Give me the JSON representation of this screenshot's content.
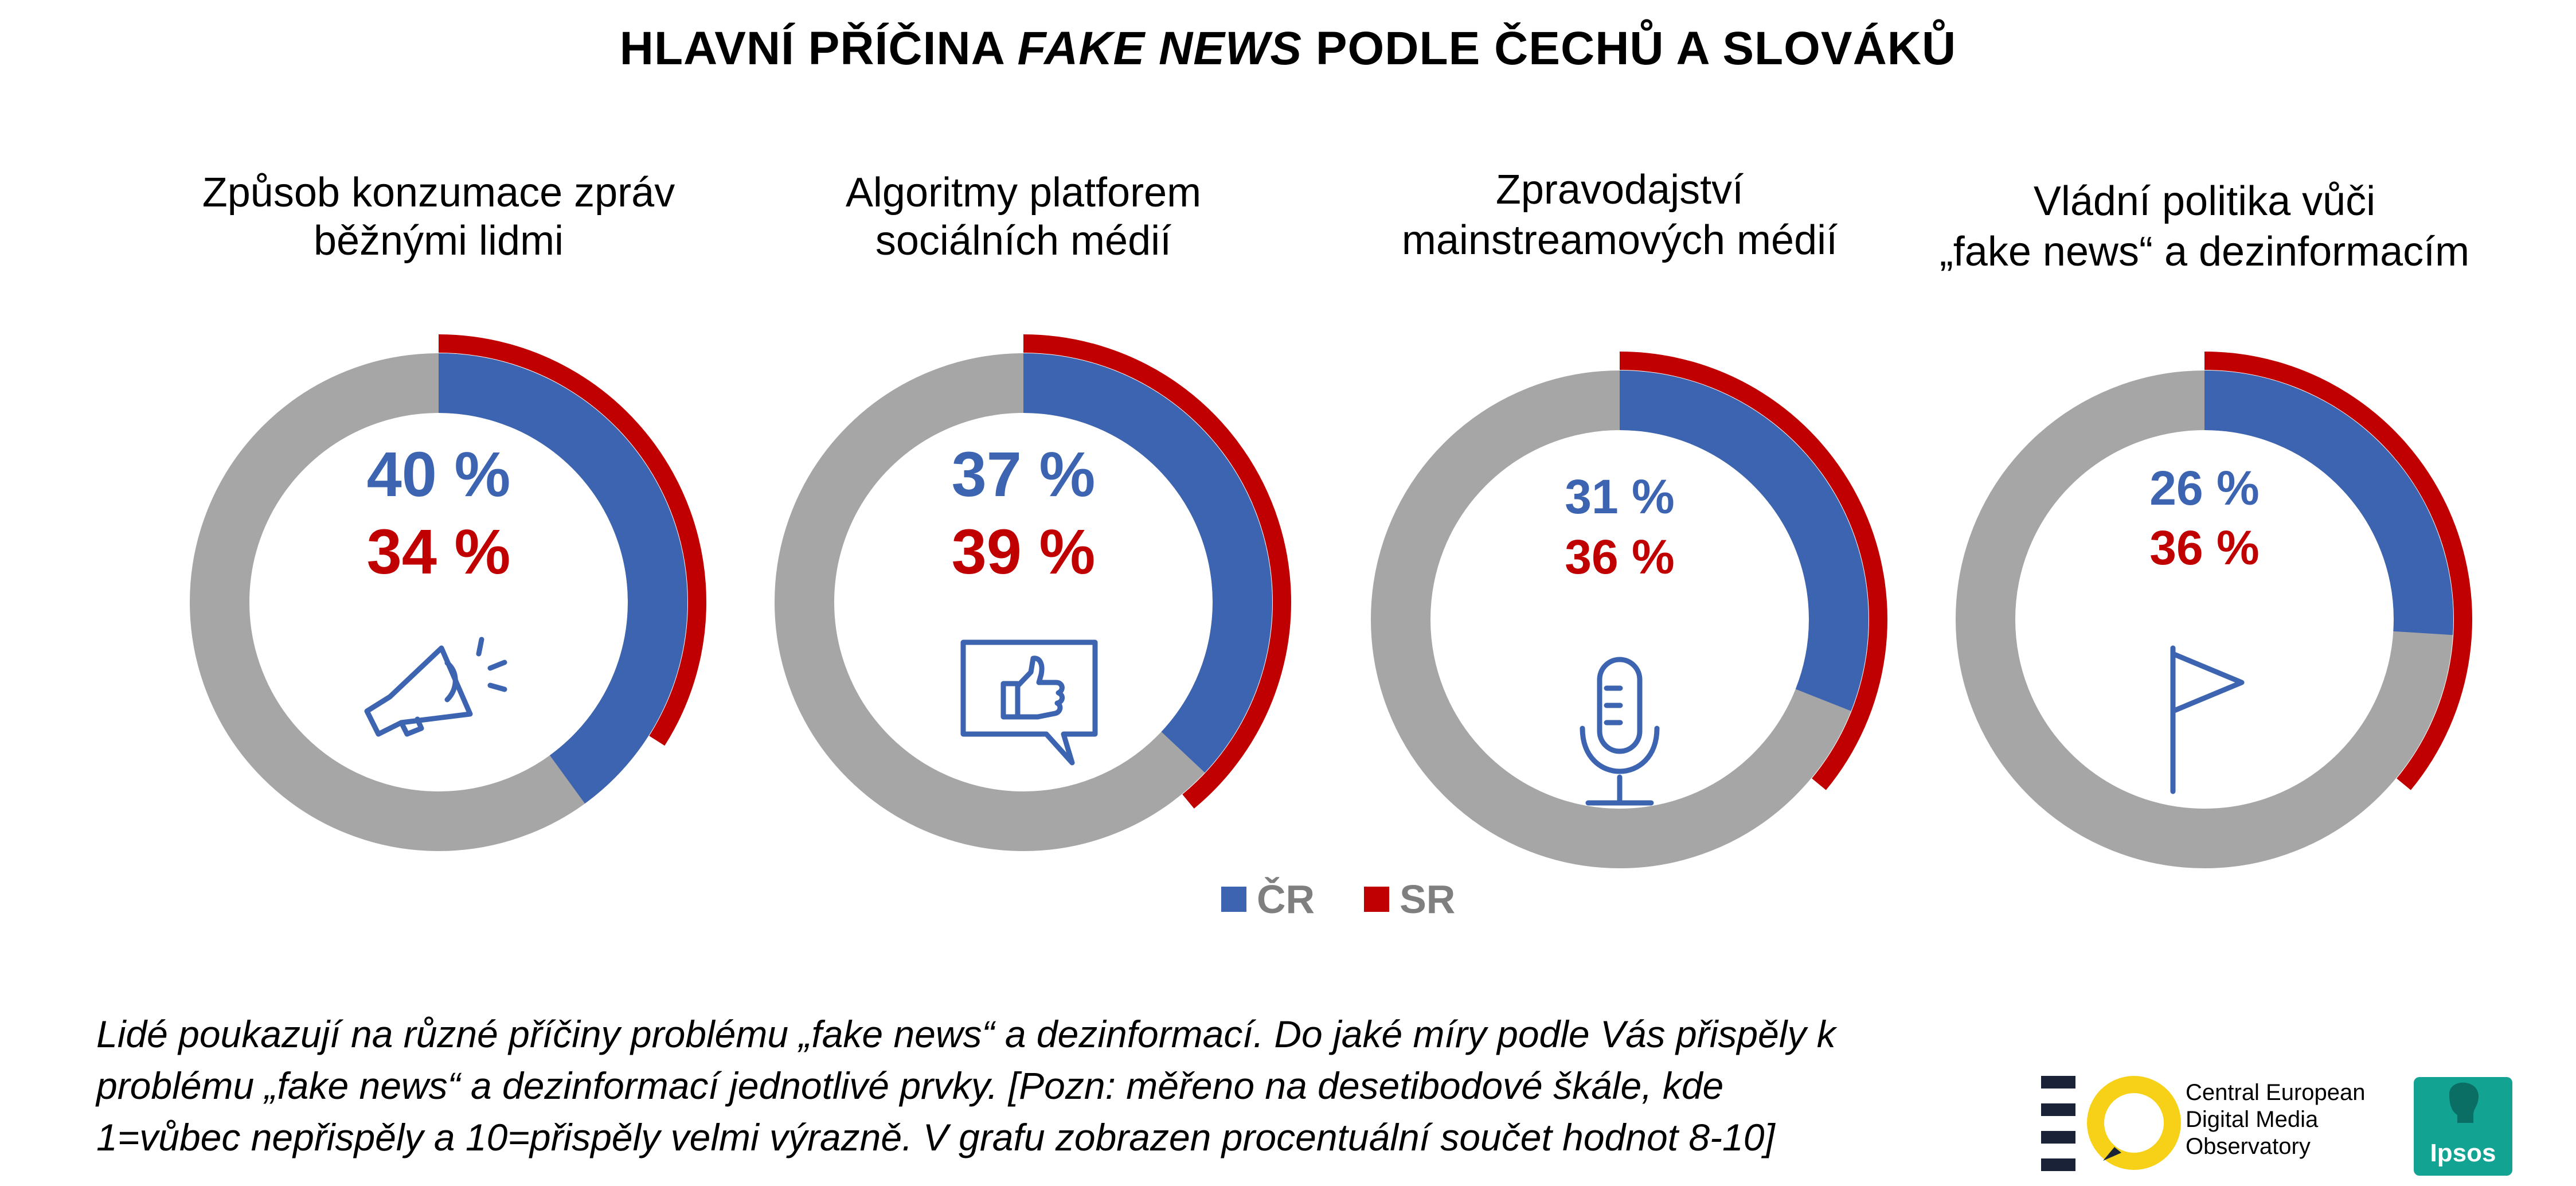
{
  "title": {
    "before": "HLAVNÍ PŘÍČINA ",
    "italic": "FAKE NEWS",
    "after": " PODLE ČECHŮ A SLOVÁKŮ"
  },
  "colors": {
    "cr": "#3c64b0",
    "sr": "#c00000",
    "track": "#a6a6a6"
  },
  "chart_data": {
    "type": "donut",
    "title": "HLAVNÍ PŘÍČINA FAKE NEWS PODLE ČECHŮ A SLOVÁKŮ",
    "unit": "%",
    "series": [
      {
        "name": "ČR",
        "color": "#3c64b0",
        "values": [
          40,
          37,
          31,
          26
        ]
      },
      {
        "name": "SR",
        "color": "#c00000",
        "values": [
          34,
          39,
          36,
          36
        ]
      }
    ],
    "categories": [
      {
        "line1": "Způsob konzumace zpráv",
        "line2": "běžnými lidmi",
        "cr_label": "40 %",
        "sr_label": "34 %",
        "icon": "megaphone-icon"
      },
      {
        "line1": "Algoritmy platforem",
        "line2": "sociálních médií",
        "cr_label": "37 %",
        "sr_label": "39 %",
        "icon": "thumbs-up-icon"
      },
      {
        "line1": "Zpravodajství",
        "line2": "mainstreamových médií",
        "cr_label": "31 %",
        "sr_label": "36 %",
        "icon": "microphone-icon"
      },
      {
        "line1": "Vládní politika vůči",
        "line2": "„fake news“ a dezinformacím",
        "cr_label": "26 %",
        "sr_label": "36 %",
        "icon": "flag-icon"
      }
    ],
    "legend": [
      "ČR",
      "SR"
    ]
  },
  "footnote": {
    "line1": "Lidé poukazují na různé příčiny problému „fake news“ a dezinformací. Do jaké míry podle Vás přispěly k",
    "line2": "problému „fake news“ a dezinformací jednotlivé prvky. [Pozn: měřeno na desetibodové škále, kde",
    "line3": "1=vůbec nepřispěly a 10=přispěly velmi výrazně. V grafu zobrazen procentuální součet hodnot 8-10]"
  },
  "logos": {
    "ceedmo": {
      "line1": "Central European",
      "line2": "Digital Media",
      "line3": "Observatory"
    },
    "ipsos": "Ipsos"
  }
}
